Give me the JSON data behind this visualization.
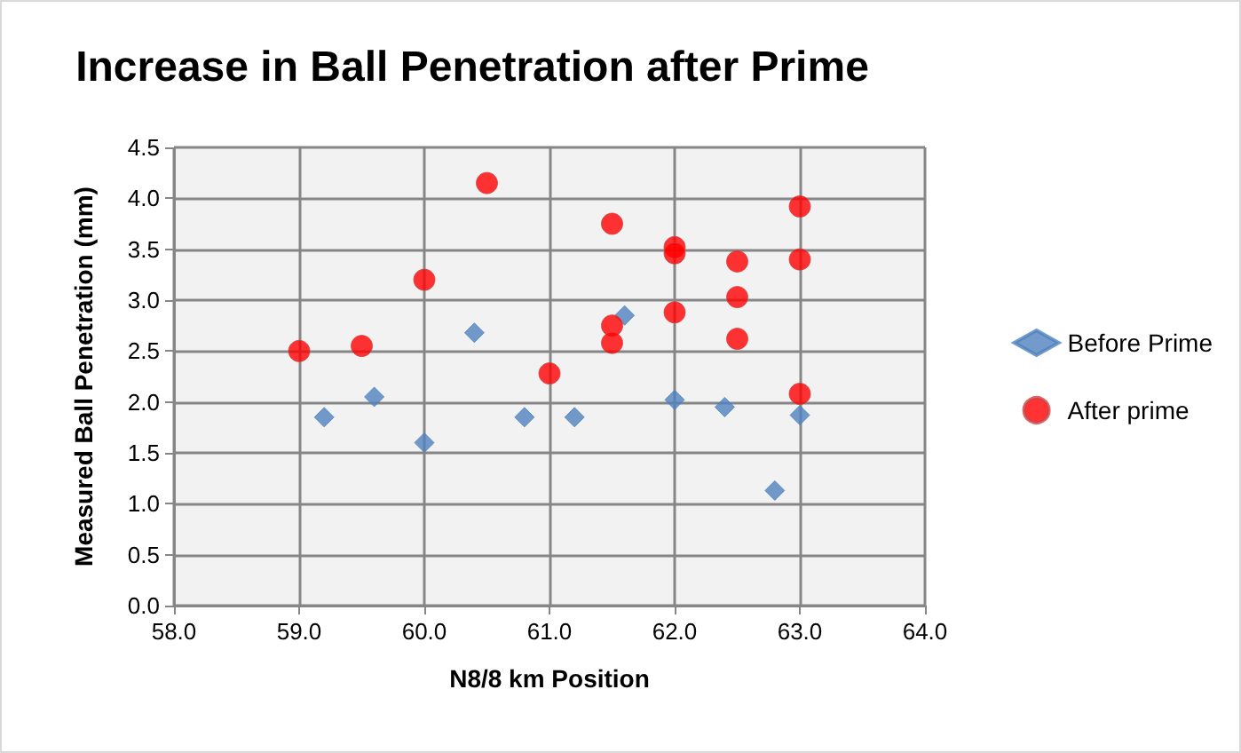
{
  "chart_data": {
    "type": "scatter",
    "title": "Increase in Ball Penetration after Prime",
    "xlabel": "N8/8 km Position",
    "ylabel": "Measured Ball Penetration (mm)",
    "series": [
      {
        "name": "Before Prime",
        "color": "#4f81bd",
        "marker": "diamond",
        "x": [
          59.2,
          59.6,
          60.0,
          60.4,
          60.8,
          61.2,
          61.6,
          62.0,
          62.4,
          62.8,
          63.0
        ],
        "values": [
          1.85,
          2.05,
          1.6,
          2.68,
          1.85,
          1.85,
          2.85,
          2.02,
          1.95,
          1.13,
          1.87
        ]
      },
      {
        "name": "After prime",
        "color": "#ff0000",
        "marker": "circle",
        "x": [
          59.0,
          59.5,
          60.0,
          60.5,
          61.0,
          61.5,
          61.5,
          61.5,
          62.0,
          62.0,
          62.0,
          62.5,
          62.5,
          62.5,
          63.0,
          63.0,
          63.0
        ],
        "values": [
          2.5,
          2.55,
          3.2,
          4.15,
          2.28,
          3.75,
          2.75,
          2.58,
          3.52,
          3.46,
          2.88,
          3.38,
          3.03,
          2.62,
          3.92,
          3.4,
          2.08
        ]
      }
    ],
    "xlim": [
      58,
      64
    ],
    "xticks": [
      {
        "value": 58,
        "label": "58.0"
      },
      {
        "value": 59,
        "label": "59.0"
      },
      {
        "value": 60,
        "label": "60.0"
      },
      {
        "value": 61,
        "label": "61.0"
      },
      {
        "value": 62,
        "label": "62.0"
      },
      {
        "value": 63,
        "label": "63.0"
      },
      {
        "value": 64,
        "label": "64.0"
      }
    ],
    "ylim": [
      0,
      4.5
    ],
    "yticks": [
      {
        "value": 0,
        "label": "0.0"
      },
      {
        "value": 0.5,
        "label": "0.5"
      },
      {
        "value": 1,
        "label": "1.0"
      },
      {
        "value": 1.5,
        "label": "1.5"
      },
      {
        "value": 2,
        "label": "2.0"
      },
      {
        "value": 2.5,
        "label": "2.5"
      },
      {
        "value": 3,
        "label": "3.0"
      },
      {
        "value": 3.5,
        "label": "3.5"
      },
      {
        "value": 4,
        "label": "4.0"
      },
      {
        "value": 4.5,
        "label": "4.5"
      }
    ],
    "grid": true,
    "legend": "right"
  }
}
